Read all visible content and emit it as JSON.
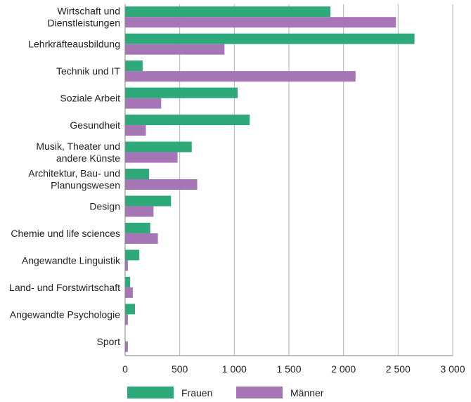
{
  "chart_data": {
    "type": "bar",
    "orientation": "horizontal",
    "categories": [
      [
        "Wirtschaft und",
        "Dienstleistungen"
      ],
      [
        "Lehrkräfteausbildung"
      ],
      [
        "Technik und IT"
      ],
      [
        "Soziale Arbeit"
      ],
      [
        "Gesundheit"
      ],
      [
        "Musik, Theater und",
        "andere Künste"
      ],
      [
        "Architektur, Bau- und",
        "Planungswesen"
      ],
      [
        "Design"
      ],
      [
        "Chemie und life sciences"
      ],
      [
        "Angewandte Linguistik"
      ],
      [
        "Land- und Forstwirtschaft"
      ],
      [
        "Angewandte Psychologie"
      ],
      [
        "Sport"
      ]
    ],
    "series": [
      {
        "name": "Frauen",
        "color": "#2eaa7a",
        "values": [
          1880,
          2650,
          160,
          1030,
          1140,
          610,
          220,
          420,
          230,
          130,
          45,
          90,
          0
        ]
      },
      {
        "name": "Männer",
        "color": "#a675b5",
        "values": [
          2480,
          910,
          2110,
          330,
          190,
          480,
          660,
          260,
          300,
          25,
          70,
          25,
          25
        ]
      }
    ],
    "xlim": [
      0,
      3000
    ],
    "xticks": [
      0,
      500,
      1000,
      1500,
      2000,
      2500,
      3000
    ],
    "xtick_labels": [
      "0",
      "500",
      "1 000",
      "1 500",
      "2 000",
      "2 500",
      "3 000"
    ],
    "grid": "vertical",
    "legend": "bottom-left"
  }
}
